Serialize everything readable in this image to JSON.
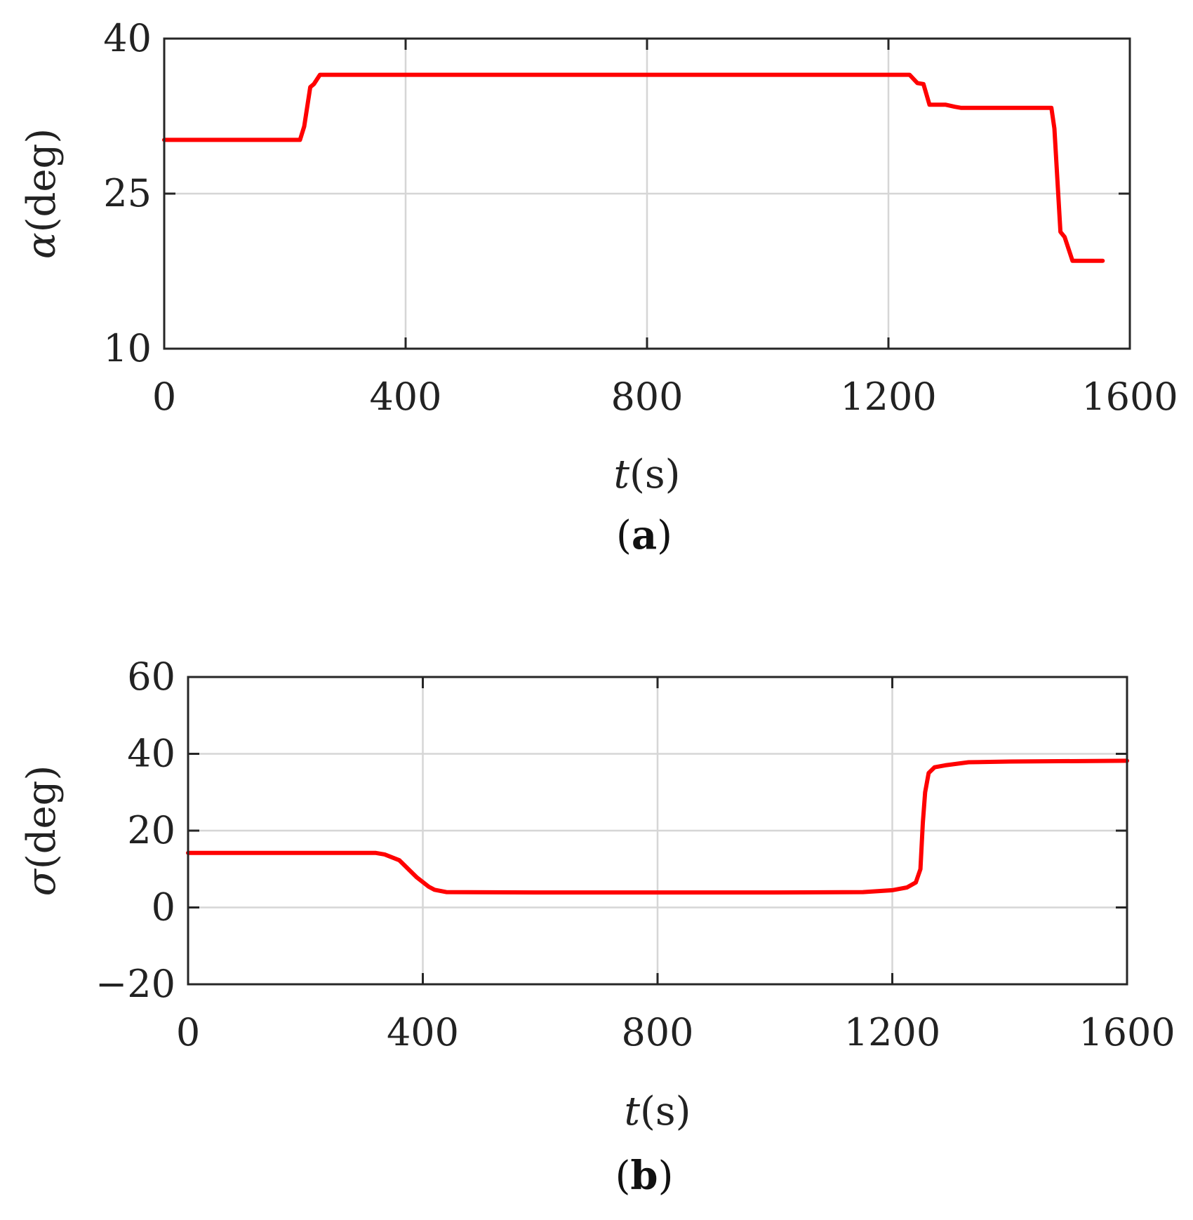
{
  "chart_data": [
    {
      "type": "line",
      "panel": "(a)",
      "xlabel": {
        "var": "t",
        "unit": "(s)"
      },
      "ylabel": {
        "var": "α",
        "unit": "(deg)"
      },
      "xlim": [
        0,
        1600
      ],
      "ylim": [
        10,
        40
      ],
      "xticks": [
        0,
        400,
        800,
        1200,
        1600
      ],
      "yticks": [
        10,
        25,
        40
      ],
      "grid": true,
      "color": "#ff0000",
      "x": [
        0,
        225,
        232,
        242,
        248,
        258,
        1235,
        1248,
        1258,
        1268,
        1295,
        1310,
        1320,
        1470,
        1475,
        1485,
        1492,
        1505,
        1555
      ],
      "values": [
        30.2,
        30.2,
        31.5,
        35.3,
        35.6,
        36.5,
        36.5,
        35.7,
        35.6,
        33.6,
        33.6,
        33.4,
        33.3,
        33.3,
        31.3,
        21.3,
        20.8,
        18.5,
        18.5
      ]
    },
    {
      "type": "line",
      "panel": "(b)",
      "xlabel": {
        "var": "t",
        "unit": "(s)"
      },
      "ylabel": {
        "var": "σ",
        "unit": "(deg)"
      },
      "xlim": [
        0,
        1600
      ],
      "ylim": [
        -20,
        60
      ],
      "xticks": [
        0,
        400,
        800,
        1200,
        1600
      ],
      "yticks": [
        -20,
        0,
        20,
        40,
        60
      ],
      "ytick_labels": [
        "−20",
        "0",
        "20",
        "40",
        "60"
      ],
      "grid": true,
      "color": "#ff0000",
      "x": [
        0,
        320,
        335,
        360,
        390,
        410,
        420,
        440,
        600,
        1000,
        1150,
        1200,
        1225,
        1240,
        1248,
        1252,
        1256,
        1262,
        1272,
        1290,
        1330,
        1400,
        1600
      ],
      "values": [
        14.2,
        14.2,
        13.8,
        12.3,
        7.8,
        5.4,
        4.6,
        4.0,
        3.9,
        3.9,
        4.0,
        4.5,
        5.2,
        6.5,
        10.0,
        22.0,
        30.0,
        35.0,
        36.5,
        37.0,
        37.8,
        38.0,
        38.2
      ]
    }
  ]
}
